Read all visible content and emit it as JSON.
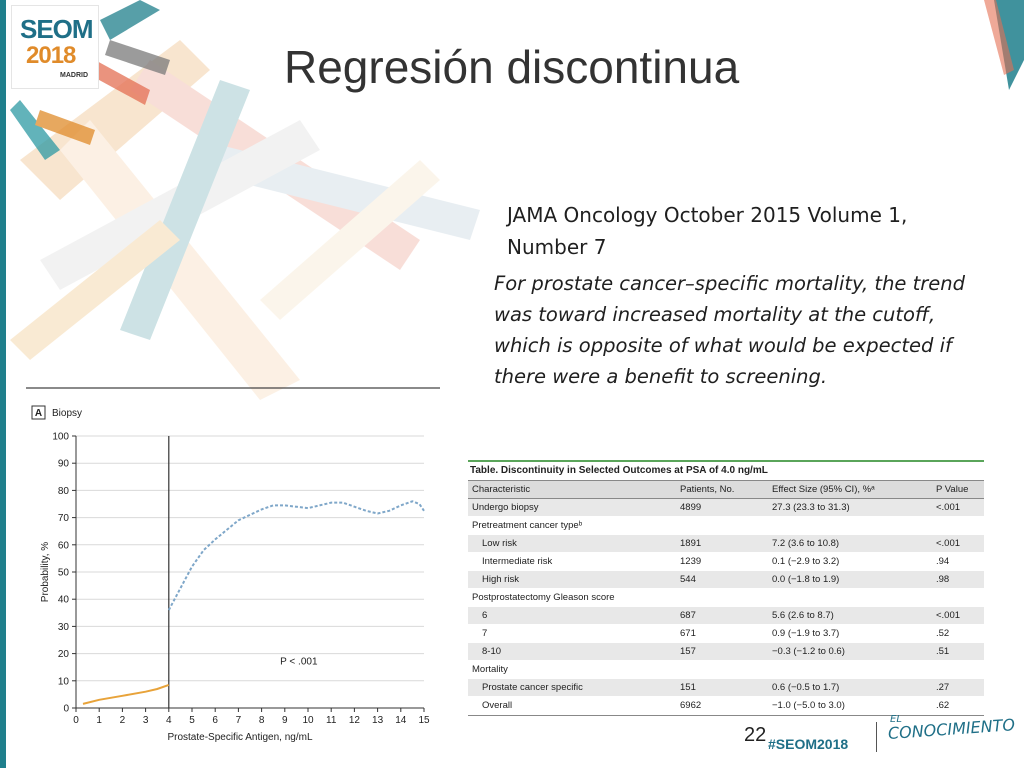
{
  "slide": {
    "title": "Regresión discontinua",
    "journal": "JAMA Oncology October 2015 Volume 1, Number 7",
    "quote": "For prostate cancer–specific mortality, the trend was toward increased mortality at the cutoff, which is opposite of what would be expected if there were a benefit to screening.",
    "slide_number": "22",
    "hashtag": "#SEOM2018",
    "handwritten_top": "EL",
    "handwritten_bottom": "CONOCIMIENTO"
  },
  "logo": {
    "line1": "SEOM",
    "line2": "2018",
    "line3": "MADRID"
  },
  "colors": {
    "teal": "#1f7f8c",
    "orange": "#e8a33a",
    "blue_dashed": "#7fa7c9",
    "table_green": "#5aa55a",
    "grid": "#d9d9d9"
  },
  "chart_data": {
    "type": "line",
    "panel_letter": "A",
    "panel_title": "Biopsy",
    "xlabel": "Prostate-Specific Antigen, ng/mL",
    "ylabel": "Probability, %",
    "xlim": [
      0,
      15
    ],
    "ylim": [
      0,
      100
    ],
    "xticks": [
      0,
      1,
      2,
      3,
      4,
      5,
      6,
      7,
      8,
      9,
      10,
      11,
      12,
      13,
      14,
      15
    ],
    "yticks": [
      0,
      10,
      20,
      30,
      40,
      50,
      60,
      70,
      80,
      90,
      100
    ],
    "cutoff": 4,
    "annotation": "P < .001",
    "grid": true,
    "series": [
      {
        "style": "solid",
        "color": "#e8a33a",
        "x": [
          0.3,
          1.0,
          2.0,
          3.0,
          3.5,
          4.0
        ],
        "y": [
          1.5,
          3.0,
          4.5,
          6.0,
          7.0,
          8.5
        ]
      },
      {
        "style": "dashed",
        "color": "#7fa7c9",
        "x": [
          4.0,
          4.5,
          5.0,
          5.5,
          6.0,
          7.0,
          8.0,
          8.5,
          9.0,
          10.0,
          10.5,
          11.0,
          11.5,
          12.0,
          12.5,
          13.0,
          13.5,
          14.0,
          14.5,
          14.8,
          15.0
        ],
        "y": [
          36,
          44,
          52,
          58,
          62,
          69,
          73,
          74.5,
          74.5,
          73.5,
          74.5,
          75.5,
          75.5,
          74,
          72.5,
          71.5,
          72.5,
          74.5,
          76,
          75,
          72.5
        ]
      }
    ]
  },
  "table": {
    "caption": "Table. Discontinuity in Selected Outcomes at PSA of 4.0 ng/mL",
    "headers": [
      "Characteristic",
      "Patients, No.",
      "Effect Size (95% CI), %ᵃ",
      "P Value"
    ],
    "rows": [
      {
        "c": "Undergo biopsy",
        "n": "4899",
        "e": "27.3 (23.3 to 31.3)",
        "p": "<.001",
        "indent": false,
        "alt": true
      },
      {
        "c": "Pretreatment cancer typeᵇ",
        "n": "",
        "e": "",
        "p": "",
        "indent": false,
        "alt": false
      },
      {
        "c": "Low risk",
        "n": "1891",
        "e": "7.2 (3.6 to 10.8)",
        "p": "<.001",
        "indent": true,
        "alt": true
      },
      {
        "c": "Intermediate risk",
        "n": "1239",
        "e": "0.1 (−2.9 to 3.2)",
        "p": ".94",
        "indent": true,
        "alt": false
      },
      {
        "c": "High risk",
        "n": "544",
        "e": "0.0 (−1.8 to 1.9)",
        "p": ".98",
        "indent": true,
        "alt": true
      },
      {
        "c": "Postprostatectomy Gleason score",
        "n": "",
        "e": "",
        "p": "",
        "indent": false,
        "alt": false
      },
      {
        "c": "6",
        "n": "687",
        "e": "5.6 (2.6 to 8.7)",
        "p": "<.001",
        "indent": true,
        "alt": true
      },
      {
        "c": "7",
        "n": "671",
        "e": "0.9 (−1.9 to 3.7)",
        "p": ".52",
        "indent": true,
        "alt": false
      },
      {
        "c": "8-10",
        "n": "157",
        "e": "−0.3 (−1.2 to 0.6)",
        "p": ".51",
        "indent": true,
        "alt": true
      },
      {
        "c": "Mortality",
        "n": "",
        "e": "",
        "p": "",
        "indent": false,
        "alt": false
      },
      {
        "c": "Prostate cancer specific",
        "n": "151",
        "e": "0.6 (−0.5 to 1.7)",
        "p": ".27",
        "indent": true,
        "alt": true
      },
      {
        "c": "Overall",
        "n": "6962",
        "e": "−1.0 (−5.0 to 3.0)",
        "p": ".62",
        "indent": true,
        "alt": false
      }
    ]
  }
}
